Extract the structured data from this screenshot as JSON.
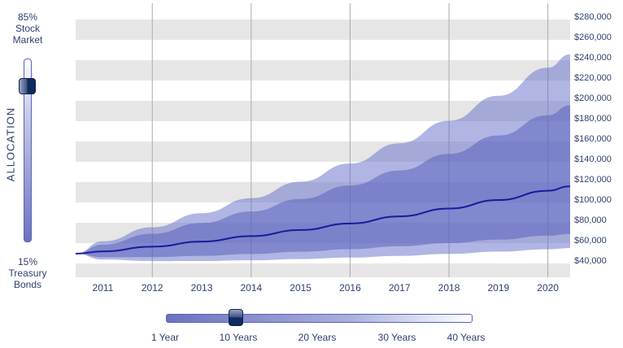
{
  "allocation": {
    "title": "ALLOCATION",
    "top_pct": "85%",
    "top_label_1": "Stock",
    "top_label_2": "Market",
    "bottom_pct": "15%",
    "bottom_label_1": "Treasury",
    "bottom_label_2": "Bonds",
    "stock_fraction": 0.85
  },
  "horizon": {
    "ticks": [
      "1 Year",
      "10 Years",
      "20 Years",
      "30 Years",
      "40 Years"
    ],
    "selected_years": 10
  },
  "colors": {
    "median": "#1a1a9c",
    "outer_band": "#a9addb",
    "inner_band": "#7a81c6",
    "grid_band": "#e6e6e6"
  },
  "chart_data": {
    "type": "area",
    "xlim": [
      2010.45,
      2020.45
    ],
    "ylim": [
      26000,
      290000
    ],
    "x_ticks": [
      "2011",
      "2012",
      "2013",
      "2014",
      "2015",
      "2016",
      "2017",
      "2018",
      "2019",
      "2020"
    ],
    "y_ticks": [
      "$280,000",
      "$260,000",
      "$240,000",
      "$220,000",
      "$200,000",
      "$180,000",
      "$160,000",
      "$140,000",
      "$120,000",
      "$100,000",
      "$80,000",
      "$60,000",
      "$40,000"
    ],
    "y_tick_values": [
      280000,
      260000,
      240000,
      220000,
      200000,
      180000,
      160000,
      140000,
      120000,
      100000,
      80000,
      60000,
      40000
    ],
    "x": [
      2010.45,
      2011,
      2012,
      2013,
      2014,
      2015,
      2016,
      2017,
      2018,
      2019,
      2020,
      2020.45
    ],
    "median": [
      48000,
      50350,
      54920,
      59890,
      65320,
      71240,
      77700,
      84750,
      92440,
      100820,
      109960,
      114340
    ],
    "outer_upper": [
      48000,
      60170,
      74030,
      87860,
      102680,
      118830,
      136750,
      156620,
      178780,
      203350,
      230920,
      244230
    ],
    "outer_lower": [
      48000,
      42130,
      40740,
      40820,
      41550,
      42710,
      44150,
      45860,
      47800,
      49990,
      52360,
      53530
    ],
    "inner_upper": [
      48000,
      57000,
      67610,
      78220,
      89490,
      101730,
      115150,
      129920,
      146240,
      164340,
      184180,
      193920
    ],
    "inner_lower": [
      48000,
      44480,
      44620,
      45860,
      47680,
      49890,
      52430,
      55280,
      58430,
      61850,
      65650,
      67420
    ],
    "grid": true
  }
}
